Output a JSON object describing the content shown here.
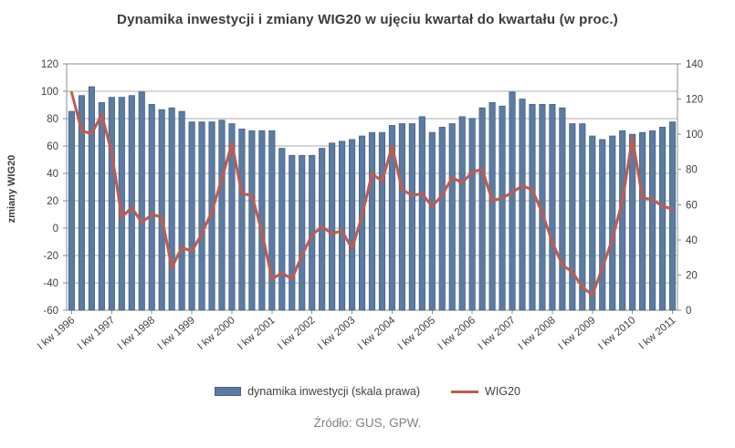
{
  "title": "Dynamika inwestycji i zmiany WIG20 w ujęciu kwartał do kwartału (w proc.)",
  "source": "Źródło: GUS, GPW.",
  "chart_data": {
    "type": "combo-bar-line",
    "quarters": [
      "1996Q1",
      "1996Q2",
      "1996Q3",
      "1996Q4",
      "1997Q1",
      "1997Q2",
      "1997Q3",
      "1997Q4",
      "1998Q1",
      "1998Q2",
      "1998Q3",
      "1998Q4",
      "1999Q1",
      "1999Q2",
      "1999Q3",
      "1999Q4",
      "2000Q1",
      "2000Q2",
      "2000Q3",
      "2000Q4",
      "2001Q1",
      "2001Q2",
      "2001Q3",
      "2001Q4",
      "2002Q1",
      "2002Q2",
      "2002Q3",
      "2002Q4",
      "2003Q1",
      "2003Q2",
      "2003Q3",
      "2003Q4",
      "2004Q1",
      "2004Q2",
      "2004Q3",
      "2004Q4",
      "2005Q1",
      "2005Q2",
      "2005Q3",
      "2005Q4",
      "2006Q1",
      "2006Q2",
      "2006Q3",
      "2006Q4",
      "2007Q1",
      "2007Q2",
      "2007Q3",
      "2007Q4",
      "2008Q1",
      "2008Q2",
      "2008Q3",
      "2008Q4",
      "2009Q1",
      "2009Q2",
      "2009Q3",
      "2009Q4",
      "2010Q1",
      "2010Q2",
      "2010Q3",
      "2010Q4",
      "2011Q1"
    ],
    "x_tick_labels": [
      "I kw 1996",
      "I kw 1997",
      "I kw 1998",
      "I kw 1999",
      "I kw 2000",
      "I kw 2001",
      "I kw 2002",
      "I kw 2003",
      "I kw 2004",
      "I kw 2005",
      "I kw 2006",
      "I kw 2007",
      "I kw 2008",
      "I kw 2009",
      "I kw 2010",
      "I kw 2011"
    ],
    "series": [
      {
        "name": "dynamika inwestycji (skala prawa)",
        "type": "bar",
        "axis": "right",
        "color": "#5C7BA1",
        "border_color": "#45638D",
        "values": [
          113,
          122,
          127,
          118,
          121,
          121,
          122,
          124,
          117,
          114,
          115,
          113,
          107,
          107,
          107,
          108,
          106,
          103,
          102,
          102,
          102,
          92,
          88,
          88,
          88,
          92,
          95,
          96,
          97,
          99,
          101,
          101,
          105,
          106,
          106,
          110,
          101,
          104,
          106,
          110,
          109,
          115,
          118,
          116,
          124,
          120,
          117,
          117,
          117,
          115,
          106,
          106,
          99,
          97,
          99,
          102,
          100,
          101,
          102,
          104,
          107
        ]
      },
      {
        "name": "WIG20",
        "type": "line",
        "axis": "left",
        "color": "#C05B4F",
        "values": [
          99,
          71,
          69,
          83,
          55,
          8,
          15,
          4,
          10,
          8,
          -29,
          -14,
          -17,
          -4,
          12,
          36,
          62,
          25,
          24,
          -3,
          -37,
          -33,
          -37,
          -20,
          -5,
          1,
          -4,
          -2,
          -15,
          9,
          40,
          34,
          60,
          28,
          24,
          25,
          16,
          24,
          37,
          33,
          41,
          43,
          20,
          22,
          26,
          31,
          28,
          11,
          -10,
          -27,
          -32,
          -43,
          -49,
          -29,
          -8,
          20,
          66,
          22,
          21,
          16,
          14
        ]
      }
    ],
    "axes": {
      "left": {
        "title": "zmiany WIG20",
        "min": -60,
        "max": 120,
        "step": 20
      },
      "right": {
        "title": "",
        "min": 0,
        "max": 140,
        "step": 20
      }
    },
    "grid": true,
    "legend_position": "bottom",
    "colors": {
      "grid": "#ADADAD",
      "plot_border": "#8C8C8C",
      "tick_text": "#3f3f3f"
    }
  }
}
